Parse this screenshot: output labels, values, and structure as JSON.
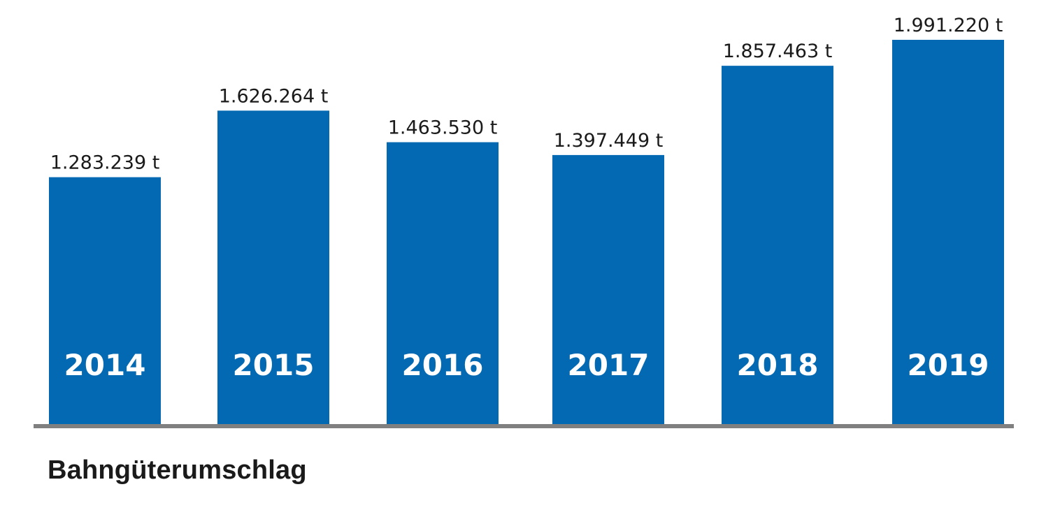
{
  "chart_data": {
    "type": "bar",
    "title": "Bahngüterumschlag",
    "xlabel": "",
    "ylabel": "",
    "unit": "t",
    "categories": [
      "2014",
      "2015",
      "2016",
      "2017",
      "2018",
      "2019"
    ],
    "values": [
      1283239,
      1626264,
      1463530,
      1397449,
      1857463,
      1991220
    ],
    "value_labels": [
      "1.283.239 t",
      "1.626.264 t",
      "1.463.530 t",
      "1.397.449 t",
      "1.857.463 t",
      "1.991.220 t"
    ],
    "ylim": [
      0,
      1991220
    ],
    "grid": false,
    "legend": "none",
    "colors": {
      "bar": "#0369b3",
      "baseline": "#808080",
      "category_text": "#ffffff",
      "value_text": "#1a1a1a"
    }
  }
}
